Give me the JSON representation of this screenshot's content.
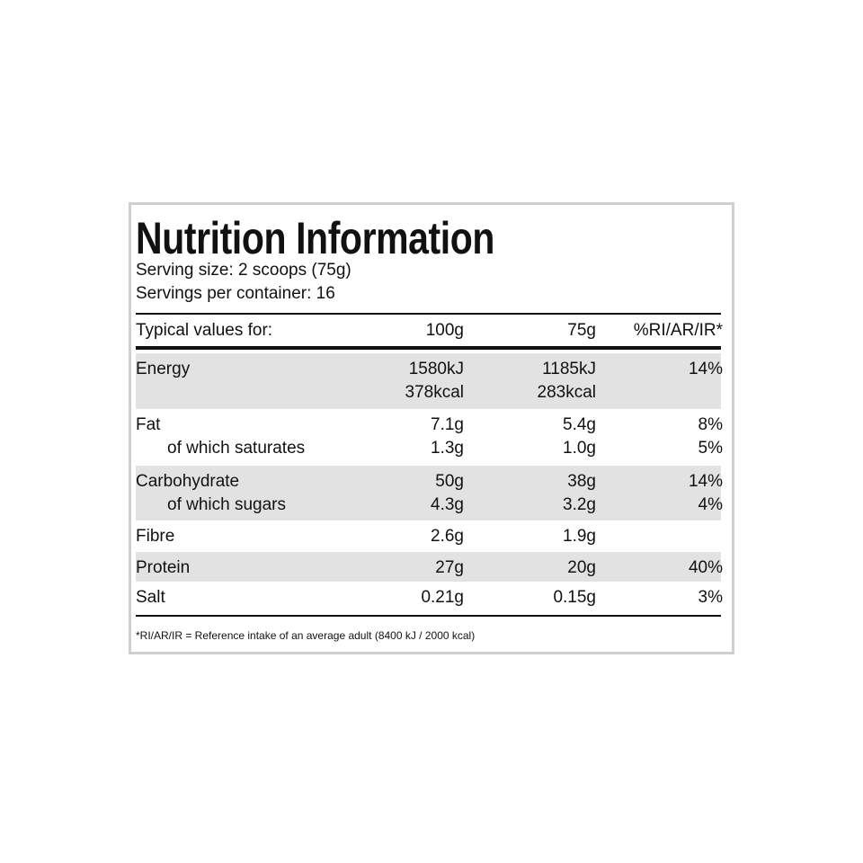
{
  "title": "Nutrition Information",
  "serving_size": "Serving size: 2 scoops (75g)",
  "servings_per_container": "Servings per container: 16",
  "table": {
    "header": [
      "Typical values for:",
      "100g",
      "75g",
      "%RI/AR/IR*"
    ],
    "rows": [
      [
        [
          "Energy",
          "1580kJ",
          "1185kJ",
          "14%"
        ],
        [
          null,
          "378kcal",
          "283kcal",
          null
        ]
      ],
      [
        [
          "Fat",
          "7.1g",
          "5.4g",
          "8%"
        ],
        [
          "of which saturates",
          "1.3g",
          "1.0g",
          "5%"
        ]
      ],
      [
        [
          "Carbohydrate",
          "50g",
          "38g",
          "14%"
        ],
        [
          "of which sugars",
          "4.3g",
          "3.2g",
          "4%"
        ]
      ],
      [
        [
          "Fibre",
          "2.6g",
          "1.9g",
          null
        ]
      ],
      [
        [
          "Protein",
          "27g",
          "20g",
          "40%"
        ]
      ],
      [
        [
          "Salt",
          "0.21g",
          "0.15g",
          "3%"
        ]
      ]
    ]
  },
  "footnote": "*RI/AR/IR = Reference intake of an average adult (8400 kJ / 2000 kcal)"
}
